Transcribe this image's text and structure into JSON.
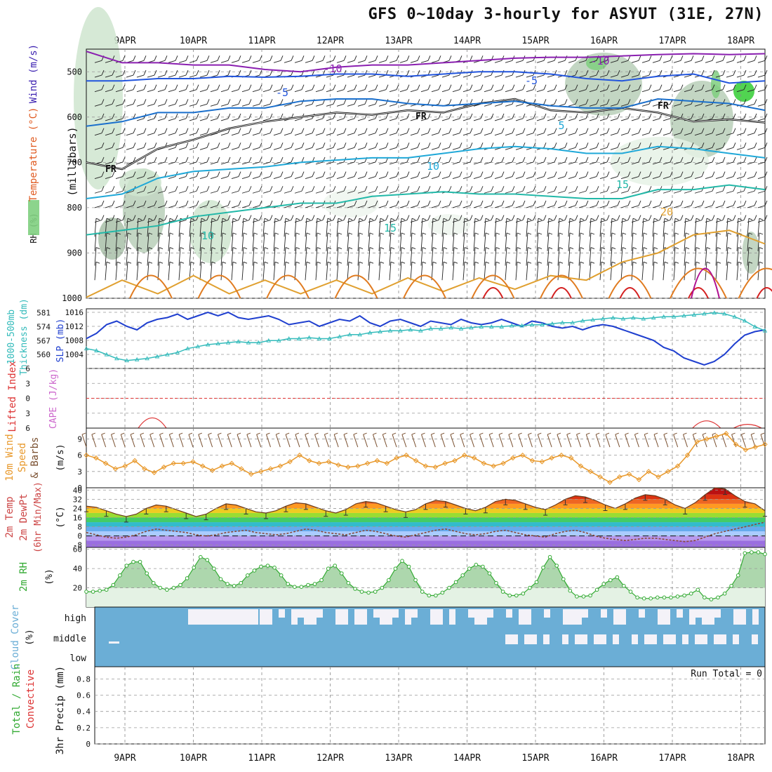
{
  "title": "GFS 0~10day 3-hourly for ASYUT (31E, 27N)",
  "dates": [
    "9APR",
    "10APR",
    "11APR",
    "12APR",
    "13APR",
    "14APR",
    "15APR",
    "16APR",
    "17APR",
    "18APR"
  ],
  "colors": {
    "rh_fill": "#7fcf7f",
    "rh_dark": "#9fb89f",
    "rh_bright": "#33cc33",
    "slp": "#1f3fcf",
    "thickness": "#33bbbb",
    "cape": "#cc66cc",
    "lifted_index": "#dd3333",
    "wind_speed": "#e8982a",
    "barbs_10m": "#7a5030",
    "rh2m": "#33aa33",
    "cloud": "#6baed6",
    "cloud_clear": "#f4f2f8",
    "precip_total": "#33aa33",
    "precip_conv": "#dd3333"
  },
  "chart_data": [
    {
      "id": "upper_air",
      "type": "heatmap",
      "ylabel_parts": [
        "RH (%)",
        "Temperature (°C)",
        "Wind (m/s)"
      ],
      "ylabel_unit": "(millibars)",
      "yticks": [
        500,
        600,
        700,
        800,
        900,
        1000
      ],
      "ylim": [
        450,
        1000
      ],
      "freezing_label": "FR",
      "isotherm_labels": [
        "-10",
        "-5",
        "-5",
        "5",
        "10",
        "10",
        "15",
        "15",
        "20",
        "-10"
      ],
      "isotherms": [
        {
          "value": -10,
          "color": "#8a1fb0",
          "p": [
            455,
            480,
            480,
            485,
            485,
            495,
            500,
            490,
            485,
            485,
            480,
            475,
            470,
            468,
            468,
            465,
            462,
            460,
            462,
            460
          ]
        },
        {
          "value": -5,
          "color": "#2255dd",
          "p": [
            520,
            520,
            515,
            515,
            510,
            512,
            510,
            505,
            505,
            510,
            505,
            500,
            500,
            505,
            515,
            520,
            510,
            505,
            525,
            520
          ]
        },
        {
          "value": 0,
          "color": "#111111",
          "p": [
            700,
            715,
            670,
            650,
            625,
            610,
            600,
            590,
            595,
            585,
            590,
            570,
            560,
            585,
            590,
            580,
            590,
            610,
            605,
            612
          ]
        },
        {
          "value": 5,
          "color": "#1a6fcc",
          "p": [
            620,
            610,
            590,
            590,
            580,
            580,
            565,
            560,
            560,
            570,
            575,
            570,
            565,
            575,
            580,
            580,
            560,
            565,
            570,
            585
          ]
        },
        {
          "value": 10,
          "color": "#1fa8d8",
          "p": [
            780,
            770,
            735,
            720,
            715,
            710,
            700,
            695,
            690,
            690,
            680,
            670,
            665,
            670,
            680,
            680,
            665,
            670,
            680,
            690
          ]
        },
        {
          "value": 15,
          "color": "#22b8a8",
          "p": [
            860,
            850,
            840,
            820,
            810,
            800,
            790,
            790,
            775,
            770,
            765,
            770,
            770,
            775,
            780,
            780,
            760,
            760,
            750,
            760
          ]
        },
        {
          "value": 20,
          "color": "#e0a030",
          "p": [
            1000,
            960,
            990,
            950,
            990,
            960,
            990,
            960,
            990,
            955,
            985,
            955,
            980,
            950,
            960,
            920,
            900,
            860,
            850,
            880
          ]
        }
      ]
    },
    {
      "id": "slp_thickness",
      "type": "line",
      "ylabel_left": "1000-500mb Thickness (dm)",
      "ylabel_right": "SLP (mb)",
      "yticks_thickness": [
        560,
        567,
        574,
        581
      ],
      "yticks_slp": [
        1004,
        1008,
        1012,
        1016
      ],
      "ylim_slp": [
        1000,
        1017
      ],
      "series": [
        {
          "name": "SLP",
          "values": [
            1008.5,
            1010,
            1012.5,
            1013.5,
            1012,
            1011,
            1013,
            1014,
            1014.5,
            1015.5,
            1014,
            1015,
            1016,
            1015,
            1016,
            1014.5,
            1014,
            1014.5,
            1015,
            1014,
            1012.5,
            1013,
            1013.5,
            1012,
            1013,
            1014,
            1013.5,
            1015,
            1013,
            1012,
            1013.5,
            1014,
            1013,
            1012,
            1013.5,
            1013,
            1012.5,
            1014,
            1013,
            1012.5,
            1013,
            1014,
            1013,
            1012,
            1013.5,
            1013,
            1012,
            1011.5,
            1012,
            1011,
            1012,
            1012.5,
            1012,
            1011,
            1010,
            1009,
            1008,
            1006,
            1005,
            1003,
            1002,
            1001,
            1002,
            1004,
            1007,
            1009.5,
            1010.5,
            1011
          ]
        },
        {
          "name": "Thickness",
          "values": [
            563,
            562,
            560,
            558,
            557,
            557.5,
            558,
            559,
            560,
            561,
            563,
            564,
            565,
            565.5,
            566,
            566.5,
            566,
            566,
            567,
            567,
            568,
            568,
            568.5,
            568,
            568,
            569,
            570,
            570,
            571,
            571.5,
            572,
            572,
            572.5,
            572,
            573,
            573,
            573.5,
            573,
            573.5,
            574,
            574,
            574,
            574.5,
            574.5,
            575,
            575,
            575.5,
            576,
            576,
            577,
            577.5,
            578,
            578.5,
            578,
            578.5,
            578,
            578.5,
            579,
            579,
            579.5,
            580,
            580.5,
            581,
            580.5,
            579,
            577,
            574,
            572
          ]
        }
      ]
    },
    {
      "id": "cape_li",
      "type": "line",
      "ylabel_left": "Lifted Index",
      "ylabel_right": "CAPE (J/kg)",
      "yticks": [
        -6,
        -3,
        0,
        3,
        6
      ],
      "ylim": [
        -6,
        6
      ],
      "li_bumps": [
        {
          "day_index": 0.4,
          "value": 3.3
        },
        {
          "day_index": 8.5,
          "value": 4.5
        },
        {
          "day_index": 9.1,
          "value": 5.9
        }
      ]
    },
    {
      "id": "wind10m",
      "type": "line",
      "ylabel_parts": [
        "10m Wind",
        "Speed",
        "& Barbs"
      ],
      "ylabel_unit": "(m/s)",
      "yticks": [
        0,
        3,
        6,
        9
      ],
      "ylim": [
        0,
        11
      ],
      "series": [
        {
          "name": "Speed",
          "values": [
            6,
            5.5,
            4.5,
            3.5,
            4,
            5,
            3.5,
            2.8,
            3.8,
            4.5,
            4.5,
            4.8,
            4,
            3.2,
            4,
            4.5,
            3.5,
            2.5,
            3,
            3.5,
            4,
            4.8,
            6,
            5,
            4.5,
            4.8,
            4.2,
            3.8,
            4,
            4.5,
            5,
            4.5,
            5.5,
            6,
            5,
            4,
            3.8,
            4.5,
            5,
            6,
            5.5,
            4.5,
            4,
            4.5,
            5.5,
            6,
            5,
            4.8,
            5.5,
            6,
            5.5,
            4,
            3,
            2,
            1,
            2,
            2.5,
            1.5,
            3,
            2,
            3,
            4,
            6,
            8.5,
            9,
            9.5,
            10,
            8,
            7,
            7.5,
            8
          ]
        }
      ]
    },
    {
      "id": "temp2m",
      "type": "area",
      "ylabel_parts": [
        "2m Temp",
        "2m DewPt",
        "(6hr Min/Max)"
      ],
      "ylabel_unit": "(°C)",
      "yticks": [
        -8,
        0,
        8,
        16,
        24,
        32,
        40
      ],
      "ylim": [
        -10,
        42
      ],
      "series": [
        {
          "name": "Temp",
          "values": [
            26,
            25,
            22,
            19,
            17,
            19,
            24,
            27,
            26,
            23,
            20,
            17,
            19,
            24,
            28,
            27,
            24,
            21,
            20,
            22,
            26,
            29,
            28,
            25,
            22,
            20,
            23,
            28,
            30,
            29,
            26,
            23,
            21,
            23,
            28,
            31,
            30,
            27,
            24,
            22,
            25,
            30,
            32,
            31,
            28,
            25,
            23,
            27,
            32,
            35,
            34,
            31,
            27,
            24,
            28,
            33,
            36,
            35,
            32,
            27,
            24,
            29,
            36,
            42,
            41,
            35,
            30,
            28,
            22
          ]
        },
        {
          "name": "DewPt",
          "values": [
            3,
            1,
            -1,
            -2,
            -1,
            1,
            4,
            6,
            5,
            4,
            3,
            1,
            0,
            1,
            3,
            4,
            5,
            3,
            2,
            1,
            2,
            4,
            6,
            5,
            3,
            2,
            1,
            3,
            5,
            4,
            2,
            0,
            -1,
            1,
            3,
            5,
            6,
            4,
            2,
            1,
            2,
            4,
            5,
            3,
            1,
            0,
            -1,
            2,
            4,
            5,
            3,
            0,
            -2,
            -3,
            -4,
            -3,
            -2,
            -2,
            -3,
            -4,
            -5,
            -4,
            -1,
            2,
            4,
            6,
            8,
            10,
            12
          ]
        }
      ]
    },
    {
      "id": "rh2m",
      "type": "area",
      "ylabel": "2m RH",
      "ylabel_unit": "(%)",
      "yticks": [
        20,
        40,
        60
      ],
      "ylim": [
        0,
        62
      ],
      "series": [
        {
          "name": "RH",
          "values": [
            16,
            16,
            17,
            18,
            23,
            33,
            43,
            47,
            47,
            35,
            25,
            20,
            18,
            20,
            23,
            30,
            41,
            52,
            49,
            40,
            29,
            24,
            22,
            25,
            33,
            38,
            42,
            43,
            41,
            33,
            24,
            21,
            21,
            23,
            24,
            28,
            40,
            43,
            35,
            25,
            19,
            16,
            15,
            16,
            20,
            28,
            40,
            48,
            42,
            28,
            16,
            12,
            12,
            15,
            20,
            26,
            33,
            40,
            44,
            42,
            35,
            25,
            16,
            12,
            12,
            14,
            20,
            26,
            41,
            52,
            43,
            29,
            17,
            11,
            11,
            12,
            18,
            24,
            28,
            31,
            22,
            16,
            10,
            9,
            9,
            10,
            10,
            10,
            11,
            12,
            14,
            18,
            10,
            8,
            10,
            14,
            22,
            33,
            56,
            57,
            57,
            55
          ]
        }
      ]
    },
    {
      "id": "cloud",
      "type": "heatmap",
      "ylabel": "Cloud Cover",
      "ylabel_unit": "(%)",
      "levels": [
        "high",
        "middle",
        "low"
      ],
      "clear_high_days": [
        1.45,
        4.6,
        5.0,
        6.2,
        6.8,
        7.9,
        8.4
      ],
      "clear_middle_days": [
        6.0,
        6.5,
        7.3,
        7.7,
        8.2,
        8.6
      ]
    },
    {
      "id": "precip",
      "type": "bar",
      "ylabel_parts": [
        "3hr Precip (mm)"
      ],
      "ylabel_legend": [
        "Total / Rain",
        "Convective"
      ],
      "yticks": [
        0,
        0.2,
        0.4,
        0.6,
        0.8
      ],
      "ylim": [
        0,
        0.95
      ],
      "run_total": "Run Total = 0",
      "values": []
    }
  ]
}
